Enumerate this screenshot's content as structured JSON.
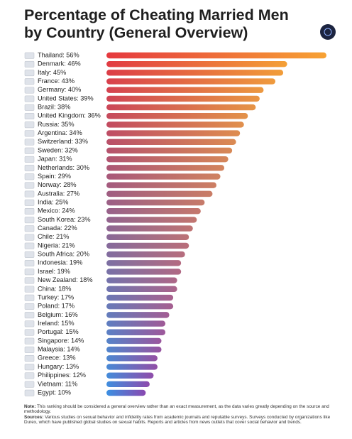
{
  "chart_data": {
    "type": "hbar",
    "title": "Percentage of Cheating Married Men by Country (General Overview)",
    "categories": [
      "Thailand:",
      "Denmark:",
      "Italy:",
      "France:",
      "Germany:",
      "United States:",
      "Brazil:",
      "United Kingdom:",
      "Russia:",
      "Argentina:",
      "Switzerland:",
      "Sweden:",
      "Japan:",
      "Netherlands:",
      "Spain:",
      "Norway:",
      "Australia:",
      "India:",
      "Mexico:",
      "South Korea:",
      "Canada:",
      "Chile:",
      "Nigeria:",
      "South Africa:",
      "Indonesia:",
      "Israel:",
      "New Zealand:",
      "China:",
      "Turkey:",
      "Poland:",
      "Belgium:",
      "Ireland:",
      "Portugal:",
      "Singapore:",
      "Malaysia:",
      "Greece:",
      "Hungary:",
      "Philippines:",
      "Vietnam:",
      "Egypt:"
    ],
    "values": [
      56,
      46,
      45,
      43,
      40,
      39,
      38,
      36,
      35,
      34,
      33,
      32,
      31,
      30,
      29,
      28,
      27,
      25,
      24,
      23,
      22,
      21,
      21,
      20,
      19,
      19,
      18,
      18,
      17,
      17,
      16,
      15,
      15,
      14,
      14,
      13,
      13,
      12,
      11,
      10
    ],
    "value_labels": [
      "56%",
      "46%",
      "45%",
      "43%",
      "40%",
      "39%",
      "38%",
      "36%",
      "35%",
      "34%",
      "33%",
      "32%",
      "31%",
      "30%",
      "29%",
      "28%",
      "27%",
      "25%",
      "24%",
      "23%",
      "22%",
      "21%",
      "21%",
      "20%",
      "19%",
      "19%",
      "18%",
      "18%",
      "17%",
      "17%",
      "16%",
      "15%",
      "15%",
      "14%",
      "14%",
      "13%",
      "13%",
      "12%",
      "11%",
      "10%"
    ],
    "xlim": [
      0,
      56
    ],
    "gradient": {
      "top": [
        "#e5393f",
        "#f7a233"
      ],
      "bottom": [
        "#3b90e2",
        "#8a48b0"
      ]
    },
    "note_label": "Note:",
    "note": "This ranking should be considered a general overview rather than an exact measurement, as the data varies greatly depending on the source and methodology.",
    "sources_label": "Sources:",
    "sources": "Various studies on sexual behavior and infidelity rates from academic journals and reputable surveys. Surveys conducted by organizations like Durex, which have published global studies on sexual habits. Reports and articles from news outlets that cover social behavior and trends."
  }
}
